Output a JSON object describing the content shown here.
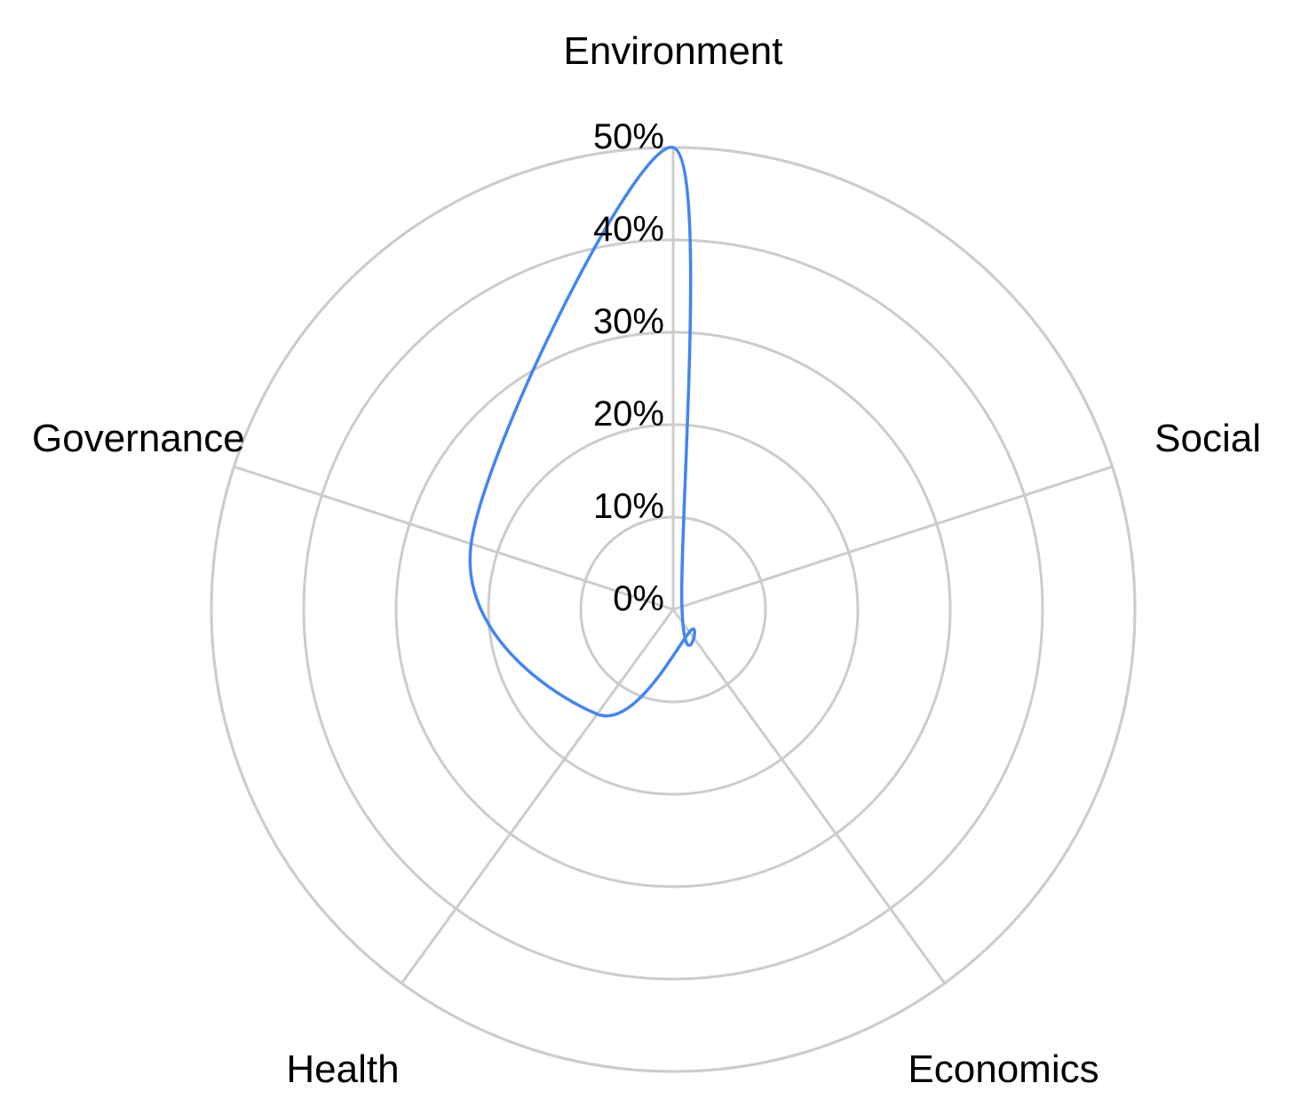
{
  "chart_data": {
    "type": "radar",
    "categories": [
      "Environment",
      "Social",
      "Economics",
      "Health",
      "Governance"
    ],
    "series": [
      {
        "values": [
          50,
          1,
          3,
          14,
          23
        ],
        "color": "#4285f4",
        "curve": "smooth-closed"
      }
    ],
    "radial_axis": {
      "range": [
        0,
        50
      ],
      "ticks": [
        "0%",
        "10%",
        "20%",
        "30%",
        "40%",
        "50%"
      ],
      "grid": true,
      "grid_shape": "circle"
    },
    "gridline_color": "#cccccc",
    "legend": "none"
  }
}
